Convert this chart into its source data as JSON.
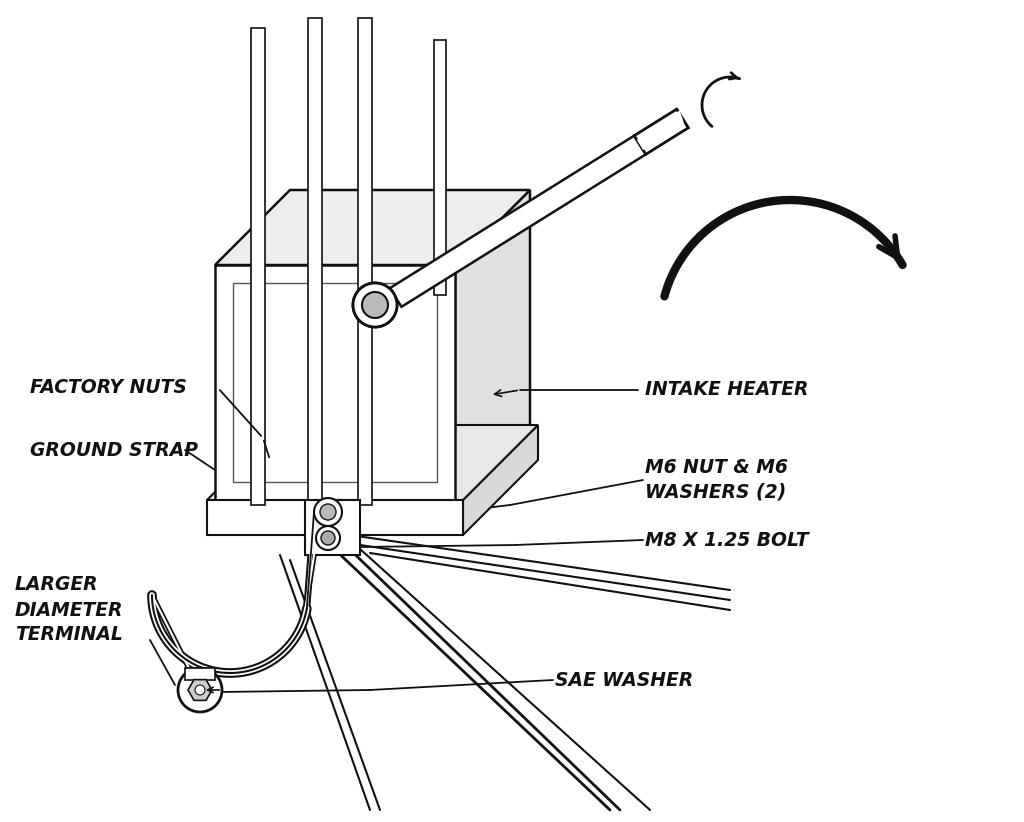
{
  "bg_color": "#ffffff",
  "line_color": "#111111",
  "labels": {
    "factory_nuts": "FACTORY NUTS",
    "ground_strap": "GROUND STRAP",
    "larger_diameter": "LARGER\nDIAMETER\nTERMINAL",
    "intake_heater": "INTAKE HEATER",
    "m6_nut": "M6 NUT & M6\nWASHERS (2)",
    "m8_bolt": "M8 X 1.25 BOLT",
    "sae_washer": "SAE WASHER"
  },
  "figsize": [
    10.24,
    8.22
  ],
  "dpi": 100
}
